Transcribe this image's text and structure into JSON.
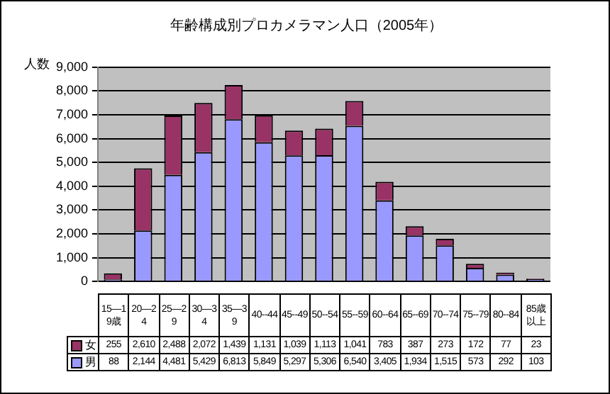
{
  "chart_data": {
    "type": "bar",
    "title": "年齢構成別プロカメラマン人口（2005年）",
    "ylabel": "人数",
    "categories": [
      "15—19歳",
      "20—24",
      "25—29",
      "30—34",
      "35—39",
      "40--44",
      "45--49",
      "50--54",
      "55--59",
      "60--64",
      "65--69",
      "70--74",
      "75--79",
      "80--84",
      "85歳以上"
    ],
    "stacked": true,
    "grid": "y",
    "legend": "bottom",
    "ylim": [
      0,
      9000
    ],
    "yticks": [
      {
        "value": 0,
        "label": "0"
      },
      {
        "value": 1000,
        "label": "1,000"
      },
      {
        "value": 2000,
        "label": "2,000"
      },
      {
        "value": 3000,
        "label": "3,000"
      },
      {
        "value": 4000,
        "label": "4,000"
      },
      {
        "value": 5000,
        "label": "5,000"
      },
      {
        "value": 6000,
        "label": "6,000"
      },
      {
        "value": 7000,
        "label": "7,000"
      },
      {
        "value": 8000,
        "label": "8,000"
      },
      {
        "value": 9000,
        "label": "9,000"
      }
    ],
    "series": [
      {
        "name": "男",
        "color": "#9999ff",
        "values": [
          88,
          2144,
          4481,
          5429,
          6813,
          5849,
          5297,
          5306,
          6540,
          3405,
          1934,
          1515,
          573,
          292,
          103
        ],
        "value_labels": [
          "88",
          "2,144",
          "4,481",
          "5,429",
          "6,813",
          "5,849",
          "5,297",
          "5,306",
          "6,540",
          "3,405",
          "1,934",
          "1,515",
          "573",
          "292",
          "103"
        ]
      },
      {
        "name": "女",
        "color": "#993366",
        "values": [
          255,
          2610,
          2488,
          2072,
          1439,
          1131,
          1039,
          1113,
          1041,
          783,
          387,
          273,
          172,
          77,
          23
        ],
        "value_labels": [
          "255",
          "2,610",
          "2,488",
          "2,072",
          "1,439",
          "1,131",
          "1,039",
          "1,113",
          "1,041",
          "783",
          "387",
          "273",
          "172",
          "77",
          "23"
        ]
      }
    ]
  }
}
